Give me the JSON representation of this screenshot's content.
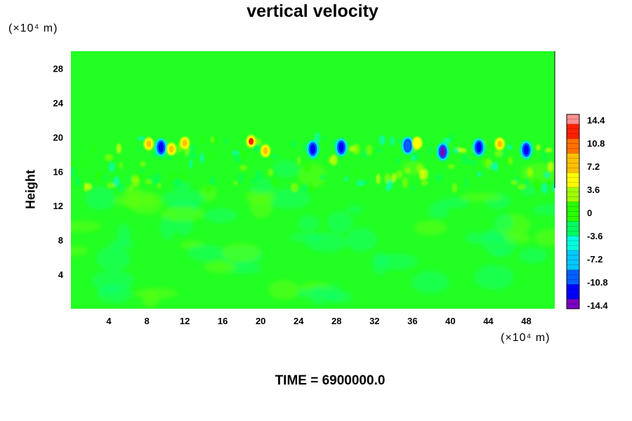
{
  "chart_data": {
    "type": "heatmap",
    "title": "vertical velocity",
    "ylabel": "Height",
    "xlabel": "",
    "x_unit": "(×10⁴ m)",
    "y_unit": "(×10⁴ m)",
    "footer": "TIME = 6900000.0",
    "xlim": [
      0,
      51
    ],
    "ylim": [
      0,
      30
    ],
    "x_ticks": [
      "4",
      "8",
      "12",
      "16",
      "20",
      "24",
      "28",
      "32",
      "36",
      "40",
      "44",
      "48"
    ],
    "y_ticks": [
      "4",
      "8",
      "12",
      "16",
      "20",
      "24",
      "28"
    ],
    "colorbar_labels": [
      "14.4",
      "10.8",
      "7.2",
      "3.6",
      "0",
      "-3.6",
      "-7.2",
      "-10.8",
      "-14.4"
    ],
    "color_range": [
      -14.4,
      14.4
    ],
    "colormap": [
      "#7a00c0",
      "#0000ff",
      "#0060ff",
      "#00c8ff",
      "#00ffe0",
      "#00ff60",
      "#28ff00",
      "#a0ff00",
      "#ffff00",
      "#ffc000",
      "#ff7000",
      "#ff2000",
      "#ff9090"
    ],
    "background_color": "#22ff22",
    "features": {
      "note_band_y_range": [
        14,
        20
      ],
      "negative_cores": [
        {
          "x": 9.5,
          "y": 18.8,
          "value": -12
        },
        {
          "x": 25.5,
          "y": 18.6,
          "value": -13
        },
        {
          "x": 28.5,
          "y": 18.8,
          "value": -11
        },
        {
          "x": 35.5,
          "y": 19.0,
          "value": -10
        },
        {
          "x": 39.2,
          "y": 18.3,
          "value": -14
        },
        {
          "x": 43.0,
          "y": 18.8,
          "value": -11
        },
        {
          "x": 48.0,
          "y": 18.5,
          "value": -13
        }
      ],
      "positive_cores": [
        {
          "x": 8.2,
          "y": 19.2,
          "value": 8
        },
        {
          "x": 10.6,
          "y": 18.6,
          "value": 7
        },
        {
          "x": 12.0,
          "y": 19.3,
          "value": 6
        },
        {
          "x": 19.0,
          "y": 19.5,
          "value": 11
        },
        {
          "x": 20.5,
          "y": 18.4,
          "value": 7
        },
        {
          "x": 45.2,
          "y": 19.2,
          "value": 7
        },
        {
          "x": 36.5,
          "y": 19.3,
          "value": 5
        }
      ]
    }
  }
}
